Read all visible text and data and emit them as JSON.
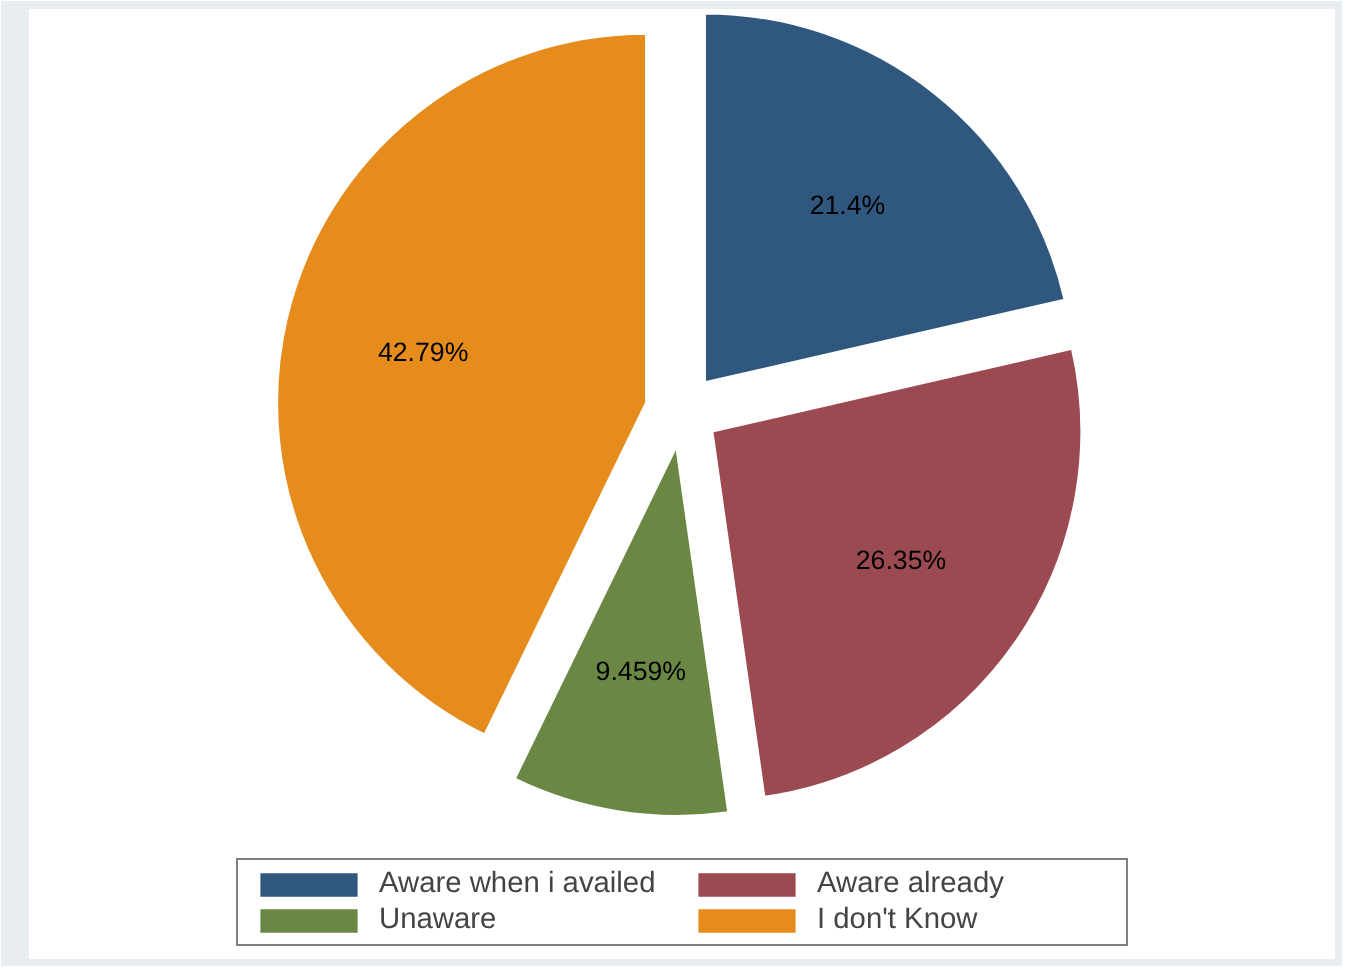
{
  "chart_data": {
    "type": "pie",
    "categories": [
      "Aware when i availed",
      "Aware already",
      "Unaware",
      "I don't Know"
    ],
    "values": [
      21.4,
      26.35,
      9.459,
      42.79
    ],
    "colors": [
      "#30587e",
      "#9b4a51",
      "#6a8843",
      "#e68c1c"
    ],
    "value_labels": [
      "21.4%",
      "26.35%",
      "9.459%",
      "42.79%"
    ],
    "legend": "bottom"
  }
}
